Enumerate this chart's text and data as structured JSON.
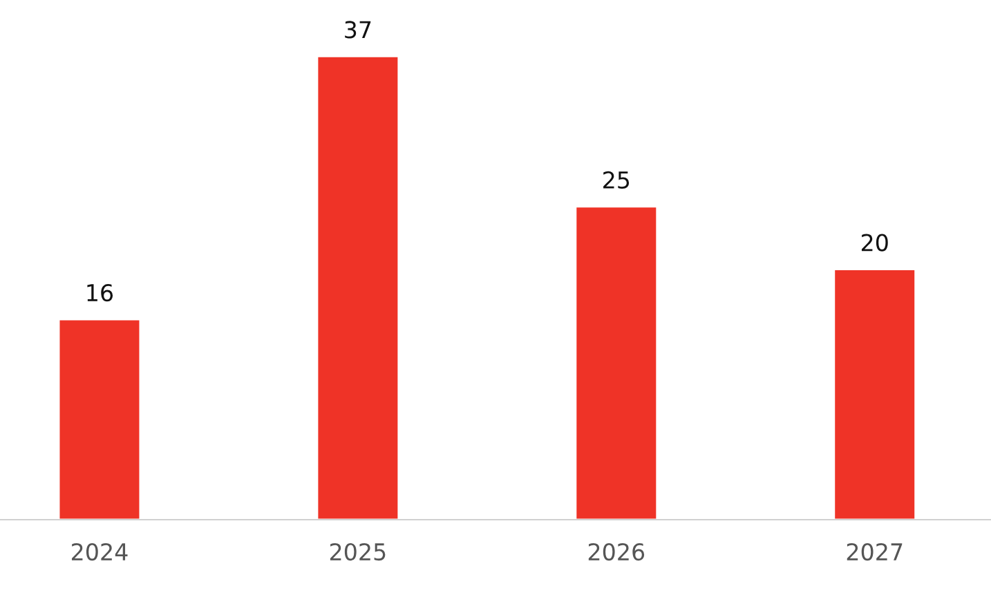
{
  "chart_data": {
    "type": "bar",
    "categories": [
      "2024",
      "2025",
      "2026",
      "2027"
    ],
    "values": [
      16,
      37,
      25,
      20
    ],
    "color": "#ef3327",
    "data_labels": true,
    "grid": false,
    "legend": false
  }
}
